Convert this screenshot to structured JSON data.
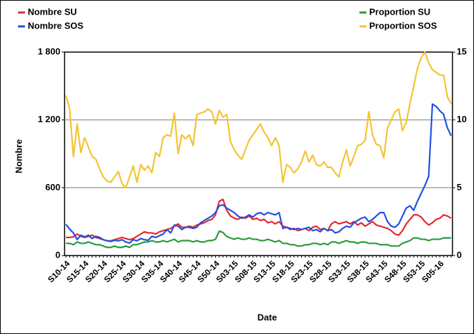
{
  "chart_data": {
    "type": "line",
    "x_label": "Date",
    "y_label": "Nombre",
    "categories": [
      "S10-14",
      null,
      null,
      null,
      null,
      "S15-14",
      null,
      null,
      null,
      null,
      "S20-14",
      null,
      null,
      null,
      null,
      "S25-14",
      null,
      null,
      null,
      null,
      "S30-14",
      null,
      null,
      null,
      null,
      "S35-14",
      null,
      null,
      null,
      null,
      "S40-14",
      null,
      null,
      null,
      null,
      "S45-14",
      null,
      null,
      null,
      null,
      "S50-14",
      null,
      null,
      null,
      null,
      "S03-15",
      null,
      null,
      null,
      null,
      "S08-15",
      null,
      null,
      null,
      null,
      "S13-15",
      null,
      null,
      null,
      null,
      "S18-15",
      null,
      null,
      null,
      null,
      "S23-15",
      null,
      null,
      null,
      null,
      "S28-15",
      null,
      null,
      null,
      null,
      "S33-15",
      null,
      null,
      null,
      null,
      "S38-15",
      null,
      null,
      null,
      null,
      "S43-15",
      null,
      null,
      null,
      null,
      "S48-15",
      null,
      null,
      null,
      null,
      "S53-15",
      null,
      null,
      null,
      null,
      "S05-16",
      null,
      null,
      null
    ],
    "ylim": [
      0,
      1800
    ],
    "yticks": [
      0,
      600,
      {
        "value": 1200,
        "label": "1 200"
      },
      {
        "value": 1800,
        "label": "1 800"
      }
    ],
    "y2lim": [
      0,
      15
    ],
    "y2ticks": [
      0,
      5,
      10,
      15
    ],
    "grid": true,
    "series": [
      {
        "name": "Nombre SU",
        "color": "#e8262b",
        "axis": "y",
        "values": [
          160,
          160,
          165,
          190,
          170,
          160,
          170,
          180,
          160,
          150,
          140,
          130,
          130,
          140,
          150,
          160,
          150,
          140,
          150,
          170,
          190,
          210,
          200,
          200,
          190,
          210,
          220,
          230,
          240,
          260,
          280,
          250,
          250,
          260,
          250,
          270,
          280,
          290,
          310,
          320,
          360,
          480,
          497,
          400,
          350,
          330,
          320,
          340,
          330,
          350,
          320,
          330,
          310,
          320,
          290,
          300,
          280,
          300,
          260,
          250,
          230,
          240,
          220,
          230,
          240,
          220,
          250,
          260,
          230,
          240,
          220,
          280,
          300,
          280,
          290,
          300,
          280,
          300,
          270,
          290,
          260,
          280,
          300,
          270,
          260,
          250,
          240,
          220,
          190,
          180,
          220,
          280,
          320,
          360,
          360,
          340,
          300,
          270,
          290,
          320,
          330,
          360,
          350,
          330
        ]
      },
      {
        "name": "Nombre SOS",
        "color": "#1f4fe0",
        "axis": "y",
        "values": [
          276,
          233,
          200,
          141,
          180,
          165,
          180,
          150,
          170,
          160,
          140,
          130,
          125,
          135,
          130,
          140,
          120,
          110,
          140,
          130,
          150,
          140,
          135,
          170,
          160,
          175,
          190,
          230,
          200,
          270,
          260,
          230,
          250,
          250,
          240,
          250,
          290,
          310,
          330,
          350,
          380,
          440,
          448,
          420,
          400,
          380,
          350,
          330,
          340,
          360,
          340,
          370,
          380,
          360,
          380,
          370,
          360,
          380,
          240,
          250,
          240,
          230,
          240,
          230,
          240,
          250,
          220,
          230,
          210,
          240,
          220,
          230,
          200,
          210,
          240,
          260,
          250,
          290,
          310,
          330,
          340,
          300,
          320,
          350,
          380,
          380,
          300,
          260,
          250,
          280,
          350,
          420,
          440,
          400,
          480,
          550,
          620,
          700,
          1340,
          1320,
          1280,
          1250,
          1130,
          1060
        ]
      },
      {
        "name": "Proportion SU",
        "color": "#2a9a3c",
        "axis": "y2",
        "values": [
          0.9,
          0.9,
          0.8,
          1.0,
          0.9,
          0.9,
          1.0,
          0.9,
          0.8,
          0.8,
          0.7,
          0.6,
          0.6,
          0.7,
          0.6,
          0.6,
          0.7,
          0.6,
          0.8,
          0.8,
          0.9,
          1.0,
          1.0,
          1.1,
          1.0,
          1.0,
          1.1,
          1.0,
          1.1,
          1.2,
          1.0,
          1.1,
          1.1,
          1.1,
          1.0,
          1.1,
          1.0,
          1.0,
          1.1,
          1.1,
          1.2,
          1.8,
          1.7,
          1.4,
          1.3,
          1.2,
          1.3,
          1.2,
          1.2,
          1.3,
          1.2,
          1.2,
          1.1,
          1.1,
          1.2,
          1.1,
          1.0,
          1.1,
          0.9,
          0.9,
          0.8,
          0.8,
          0.7,
          0.7,
          0.8,
          0.8,
          0.9,
          0.9,
          0.8,
          0.9,
          0.8,
          1.0,
          1.0,
          0.9,
          1.0,
          1.1,
          1.0,
          1.0,
          0.9,
          1.0,
          1.0,
          0.9,
          0.9,
          0.9,
          0.8,
          0.8,
          0.8,
          0.7,
          0.7,
          0.7,
          0.9,
          1.0,
          1.1,
          1.3,
          1.3,
          1.2,
          1.2,
          1.1,
          1.2,
          1.2,
          1.2,
          1.3,
          1.3,
          1.3
        ]
      },
      {
        "name": "Proportion SOS",
        "color": "#f5c330",
        "axis": "y2",
        "values": [
          11.8,
          10.8,
          7.3,
          9.7,
          7.6,
          8.7,
          8.0,
          7.3,
          7.1,
          6.4,
          5.8,
          5.5,
          5.4,
          5.8,
          6.2,
          5.3,
          5.0,
          5.8,
          6.6,
          5.4,
          6.7,
          6.3,
          6.6,
          6.1,
          7.6,
          7.3,
          8.7,
          8.9,
          8.8,
          10.5,
          7.5,
          8.9,
          8.6,
          8.9,
          8.1,
          10.4,
          10.5,
          10.6,
          10.8,
          10.6,
          9.7,
          10.7,
          10.2,
          10.4,
          8.4,
          7.8,
          7.4,
          7.1,
          7.8,
          8.5,
          8.9,
          9.3,
          9.7,
          9.1,
          8.7,
          8.1,
          8.7,
          8.1,
          5.4,
          6.7,
          6.5,
          6.1,
          6.4,
          6.9,
          7.7,
          6.9,
          7.4,
          6.7,
          6.6,
          6.9,
          6.5,
          6.5,
          6.1,
          5.8,
          6.9,
          7.8,
          6.6,
          7.3,
          8.1,
          8.2,
          8.5,
          10.6,
          8.9,
          8.2,
          8.1,
          7.2,
          9.4,
          10.0,
          10.6,
          10.8,
          9.2,
          9.8,
          11.2,
          12.5,
          13.8,
          14.6,
          15.0,
          14.2,
          13.7,
          13.5,
          13.3,
          13.3,
          11.7,
          11.2
        ]
      }
    ]
  }
}
